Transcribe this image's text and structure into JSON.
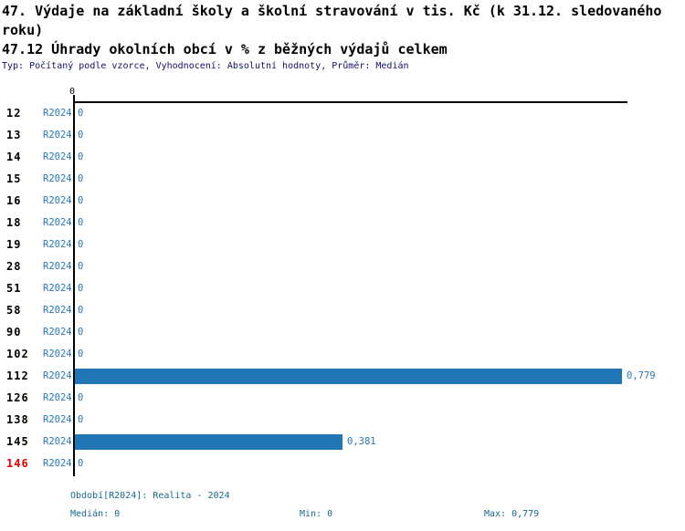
{
  "header": {
    "title_line1": "47. Výdaje na základní školy a školní stravování v tis. Kč (k 31.12. sledovaného roku)",
    "title_line2": "47.12 Úhrady okolních obcí v % z běžných výdajů celkem",
    "meta": "Typ: Počítaný podle vzorce, Vyhodnocení: Absolutní hodnoty, Průměr: Medián"
  },
  "chart_data": {
    "type": "bar",
    "orientation": "horizontal",
    "title": "47.12 Úhrady okolních obcí v % z běžných výdajů celkem",
    "axis_tick_label": "0",
    "series_label": "R2024",
    "categories": [
      "12",
      "13",
      "14",
      "15",
      "16",
      "18",
      "19",
      "28",
      "51",
      "58",
      "90",
      "102",
      "112",
      "126",
      "138",
      "145",
      "146"
    ],
    "values": [
      0,
      0,
      0,
      0,
      0,
      0,
      0,
      0,
      0,
      0,
      0,
      0,
      0.779,
      0,
      0,
      0.381,
      0
    ],
    "value_labels": [
      "0",
      "0",
      "0",
      "0",
      "0",
      "0",
      "0",
      "0",
      "0",
      "0",
      "0",
      "0",
      "0,779",
      "0",
      "0",
      "0,381",
      "0"
    ],
    "highlight_category": "146",
    "xlim": [
      0,
      0.779
    ],
    "grid": false,
    "legend_position": "none",
    "bar_color": "#2176b5"
  },
  "footer": {
    "period": "Období[R2024]: Realita - 2024",
    "median": "Medián: 0",
    "min": "Min: 0",
    "max": "Max: 0,779"
  },
  "colors": {
    "bar": "#2176b5",
    "row_text": "#2878b8",
    "footer_text": "#17698e",
    "highlight": "#e80000",
    "meta_text": "#10106a",
    "axis": "#000000"
  }
}
